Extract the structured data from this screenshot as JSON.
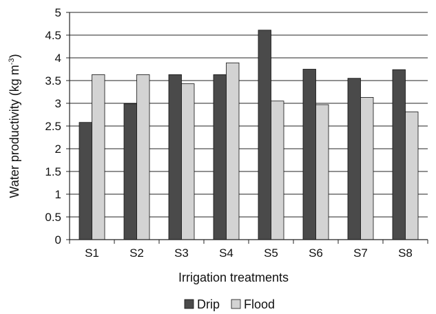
{
  "chart_data": {
    "type": "bar",
    "title": "",
    "xlabel": "Irrigation treatments",
    "ylabel": "Water productivity (kg m",
    "ylabel_superscript": "-3",
    "ylabel_suffix": ")",
    "ylim": [
      0,
      5
    ],
    "yticks": [
      "0",
      "0.5",
      "1",
      "1.5",
      "2",
      "2.5",
      "3",
      "3.5",
      "4",
      "4.5",
      "5"
    ],
    "grid": true,
    "legend_position": "bottom",
    "categories": [
      "S1",
      "S2",
      "S3",
      "S4",
      "S5",
      "S6",
      "S7",
      "S8"
    ],
    "series": [
      {
        "name": "Drip",
        "color": "#4a4a4a",
        "values": [
          2.58,
          2.99,
          3.63,
          3.63,
          4.61,
          3.75,
          3.55,
          3.74
        ]
      },
      {
        "name": "Flood",
        "color": "#d3d3d3",
        "values": [
          3.63,
          3.63,
          3.43,
          3.89,
          3.05,
          2.97,
          3.13,
          2.81
        ]
      }
    ]
  }
}
